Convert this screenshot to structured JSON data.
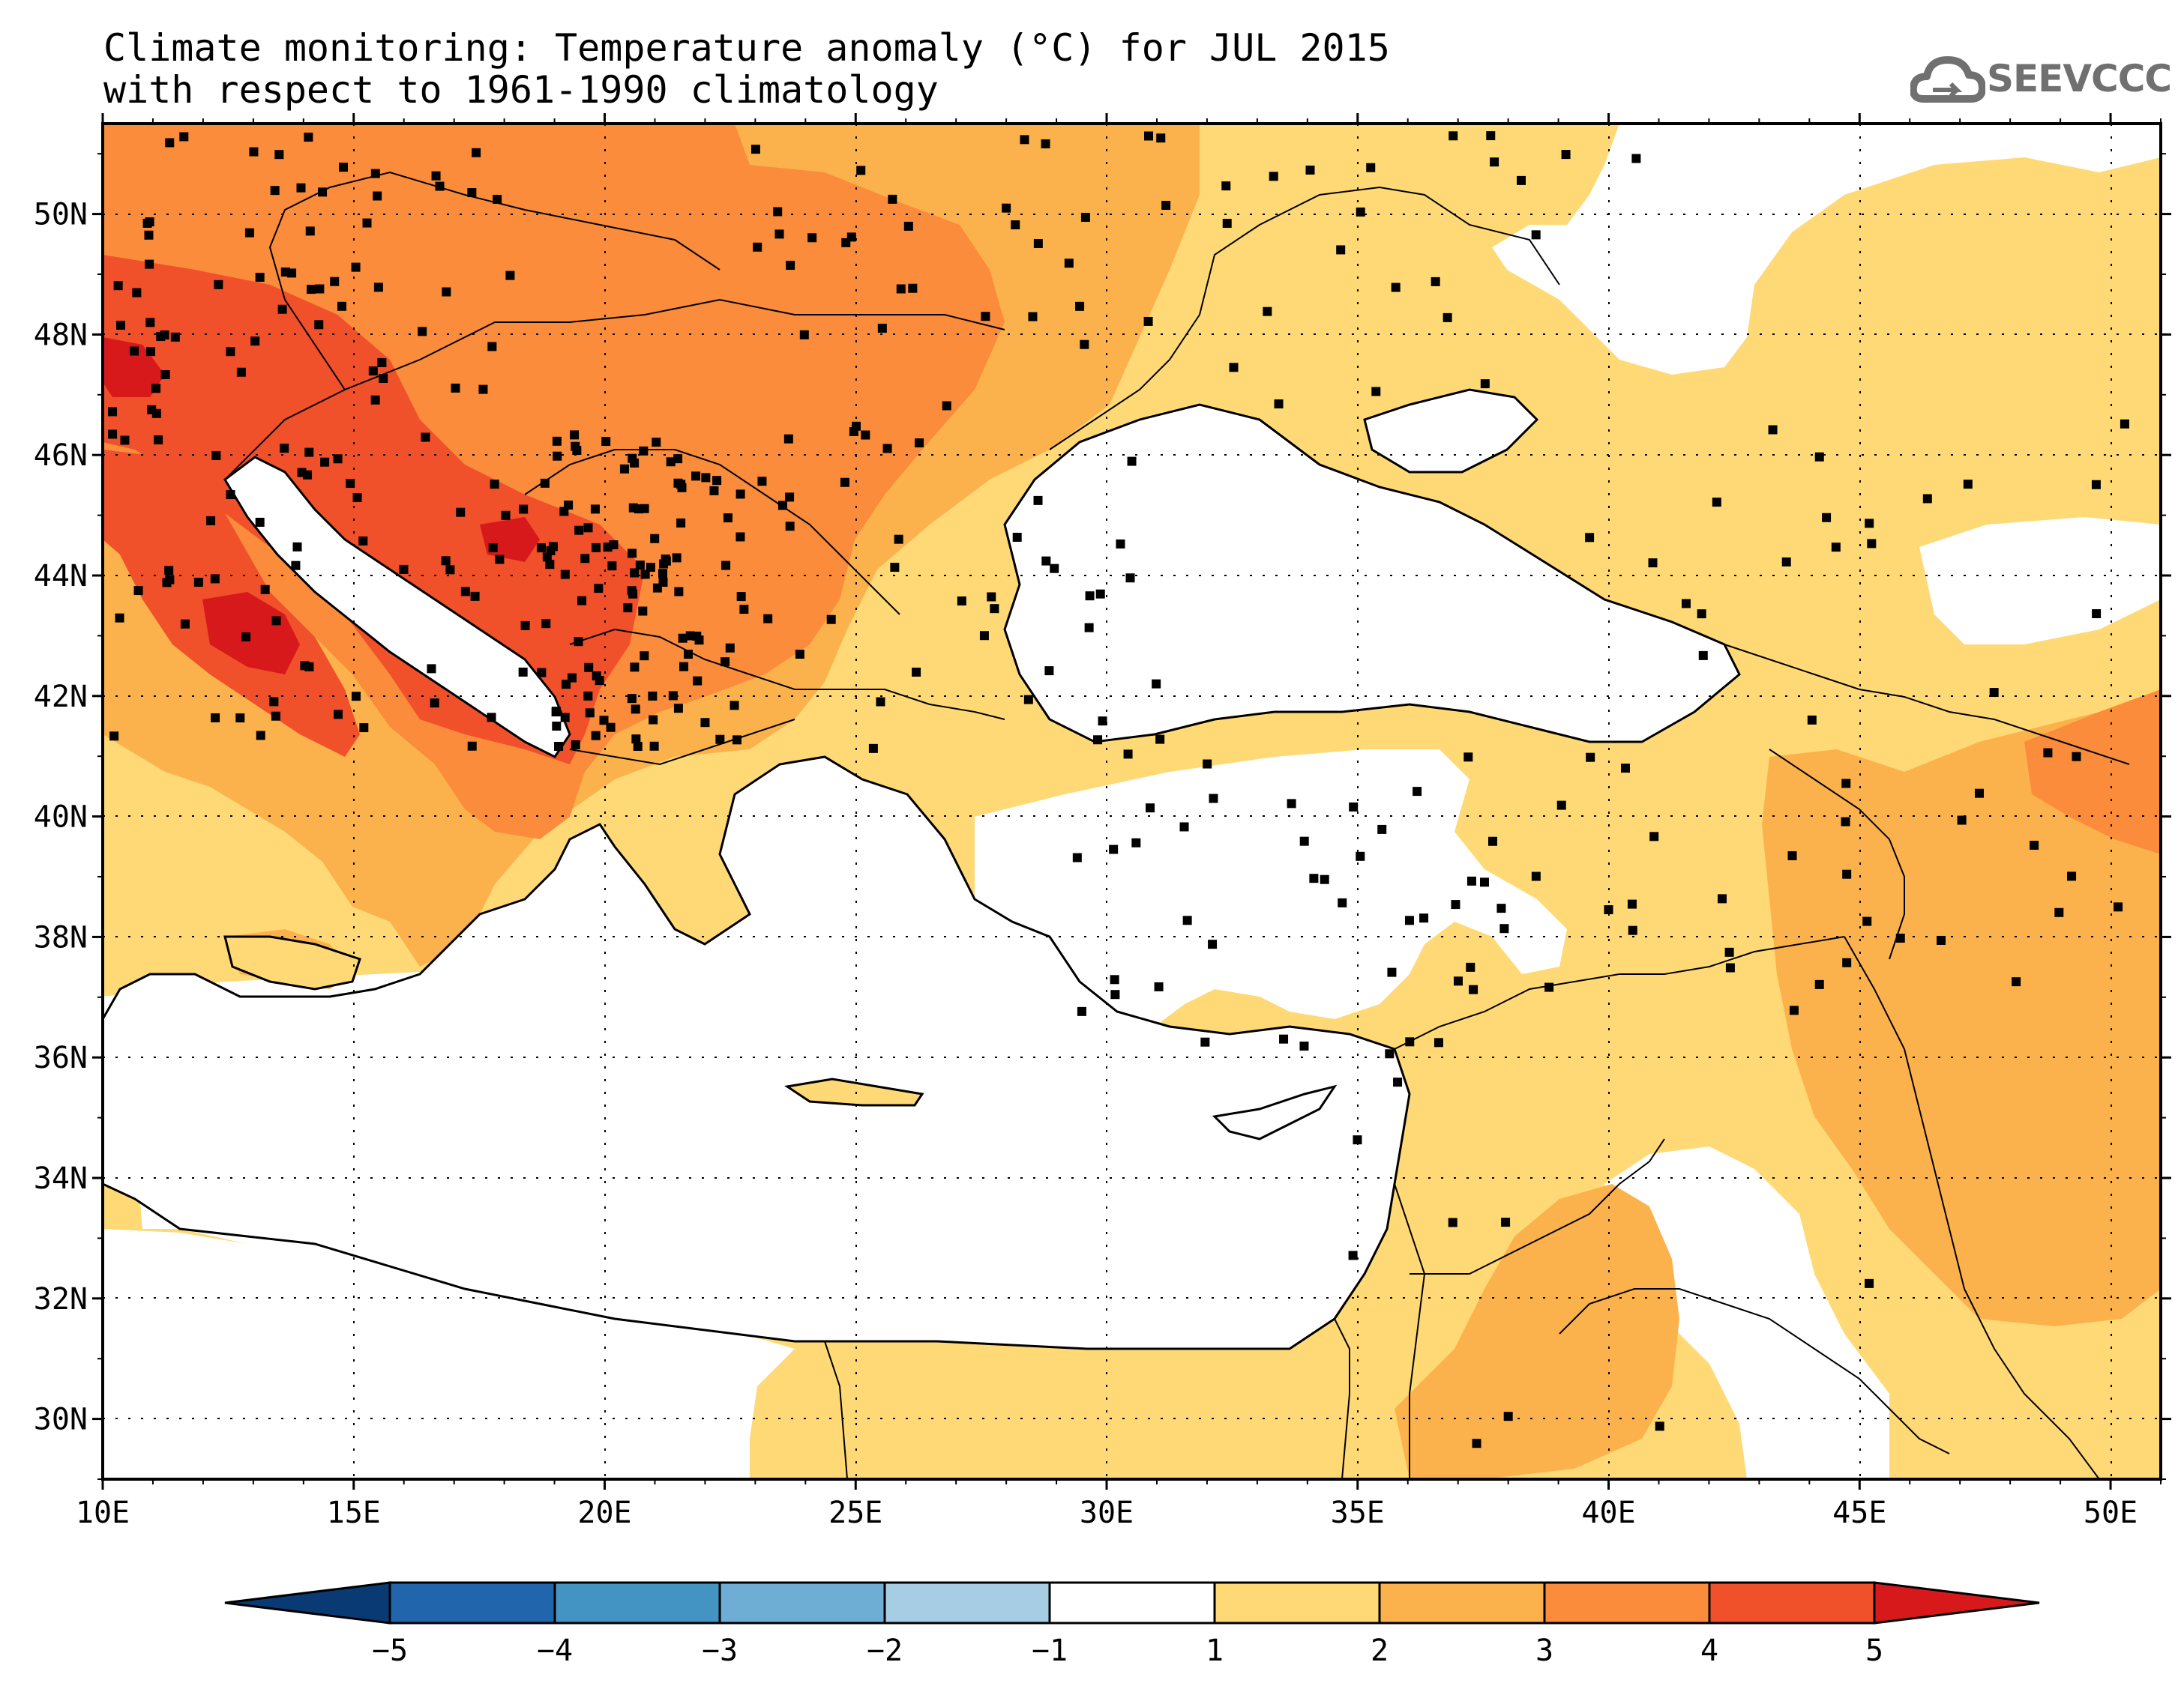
{
  "title": {
    "line1": "Climate monitoring: Temperature anomaly (°C) for JUL 2015",
    "line2": "with respect to 1961-1990 climatology"
  },
  "logo": {
    "text": "SEEVCCC",
    "icon": "cloud-icon",
    "color": "#707070"
  },
  "map": {
    "lon_range": [
      10,
      51
    ],
    "lat_range": [
      29,
      51.5
    ],
    "lon_ticks": [
      "10E",
      "15E",
      "20E",
      "25E",
      "30E",
      "35E",
      "40E",
      "45E",
      "50E"
    ],
    "lat_ticks": [
      "30N",
      "32N",
      "34N",
      "36N",
      "38N",
      "40N",
      "42N",
      "44N",
      "46N",
      "48N",
      "50N"
    ],
    "grid": "dotted"
  },
  "colorbar": {
    "boundaries": [
      "-5",
      "-4",
      "-3",
      "-2",
      "-1",
      "1",
      "2",
      "3",
      "4",
      "5"
    ],
    "colors": [
      "#0a3a73",
      "#2166ac",
      "#4393c3",
      "#6eaed4",
      "#a6cde3",
      "#ffffff",
      "#fed976",
      "#fcb24c",
      "#fa8c3c",
      "#f0502a",
      "#d7191c"
    ]
  }
}
